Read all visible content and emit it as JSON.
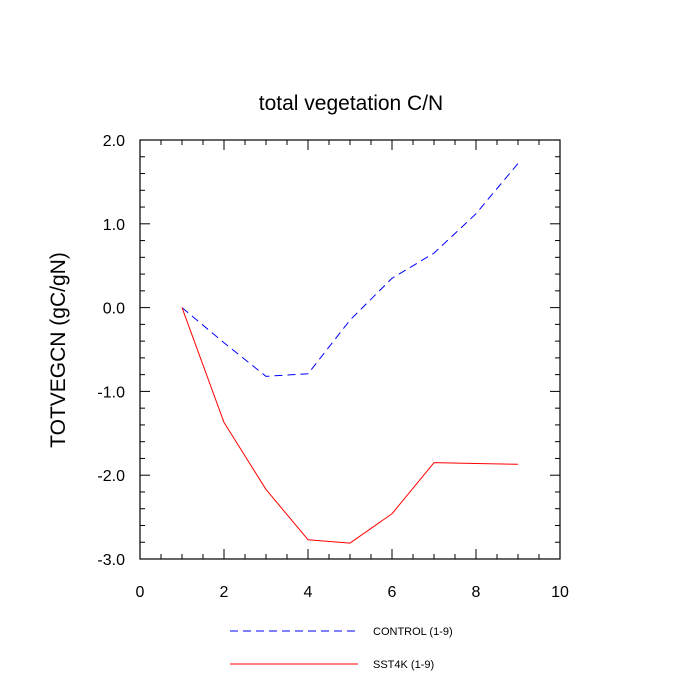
{
  "chart_data": {
    "type": "line",
    "title": "total vegetation C/N",
    "xlabel": "",
    "ylabel": "TOTVEGCN  (gC/gN)",
    "xlim": [
      0,
      10
    ],
    "ylim": [
      -3.0,
      2.0
    ],
    "x_ticks": [
      0,
      2,
      4,
      6,
      8,
      10
    ],
    "x_tick_labels": [
      "0",
      "2",
      "4",
      "6",
      "8",
      "10"
    ],
    "y_ticks": [
      -3.0,
      -2.0,
      -1.0,
      0.0,
      1.0,
      2.0
    ],
    "y_tick_labels": [
      "-3.0",
      "-2.0",
      "-1.0",
      "0.0",
      "1.0",
      "2.0"
    ],
    "grid": false,
    "legend_position": "bottom",
    "series": [
      {
        "name": "CONTROL (1-9)",
        "color": "#0000ff",
        "dash": "dashed",
        "x": [
          1,
          2,
          3,
          4,
          5,
          6,
          7,
          8,
          9
        ],
        "values": [
          0.0,
          -0.42,
          -0.82,
          -0.79,
          -0.15,
          0.35,
          0.65,
          1.12,
          1.72
        ]
      },
      {
        "name": "SST4K (1-9)",
        "color": "#ff0000",
        "dash": "solid",
        "x": [
          1,
          2,
          3,
          4,
          5,
          6,
          7,
          8,
          9
        ],
        "values": [
          0.0,
          -1.37,
          -2.17,
          -2.77,
          -2.81,
          -2.46,
          -1.85,
          -1.86,
          -1.87
        ]
      }
    ]
  }
}
